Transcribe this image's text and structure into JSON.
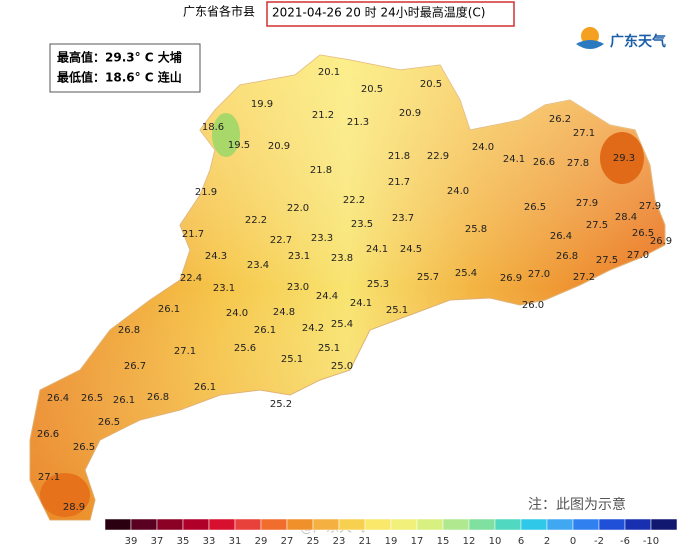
{
  "header": {
    "title": "广东省各市县",
    "date_title": "2021-04-26 20 时 24小时最高温度(C)"
  },
  "extremes": [
    "最高值：29.3° C 大埔",
    "最低值：18.6° C 连山"
  ],
  "logo": "广东天气",
  "stations": [
    "20.1",
    "20.5",
    "20.5",
    "19.9",
    "21.2",
    "21.3",
    "20.9",
    "18.6",
    "19.5",
    "20.9",
    "21.8",
    "22.9",
    "24.0",
    "24.1",
    "26.2",
    "27.1",
    "26.6",
    "27.8",
    "29.3",
    "21.8",
    "21.7",
    "21.9",
    "24.0",
    "22.2",
    "22.0",
    "27.9",
    "27.9",
    "26.5",
    "28.4",
    "22.2",
    "23.5",
    "23.7",
    "25.8",
    "27.5",
    "21.7",
    "22.7",
    "23.3",
    "26.4",
    "26.5",
    "26.9",
    "24.3",
    "23.1",
    "24.1",
    "24.5",
    "23.8",
    "26.8",
    "27.5",
    "27.0",
    "23.4",
    "22.4",
    "25.3",
    "25.7",
    "25.4",
    "26.9",
    "27.0",
    "27.2",
    "23.1",
    "23.0",
    "24.4",
    "26.1",
    "24.1",
    "25.1",
    "26.0",
    "24.0",
    "24.8",
    "26.8",
    "26.1",
    "24.2",
    "25.4",
    "25.6",
    "25.1",
    "27.1",
    "26.7",
    "25.1",
    "25.0",
    "26.1",
    "26.4",
    "26.5",
    "26.1",
    "26.8",
    "25.2",
    "26.5",
    "26.6",
    "26.5",
    "27.1",
    "28.9"
  ],
  "legend": {
    "colors": [
      "#2a0010",
      "#5a0020",
      "#8b0025",
      "#b0002a",
      "#d7102f",
      "#e8403a",
      "#f06d2c",
      "#f0902a",
      "#f4b040",
      "#f7d050",
      "#f9e86a",
      "#f0f07a",
      "#d8f080",
      "#b0e890",
      "#80e0a0",
      "#50d8c0",
      "#30c8e8",
      "#40a8f0",
      "#3080f0",
      "#2050d8",
      "#1830b0",
      "#101870"
    ],
    "labels": [
      39,
      37,
      35,
      33,
      31,
      29,
      27,
      25,
      23,
      21,
      19,
      17,
      15,
      12,
      10,
      6,
      2,
      0,
      -2,
      -6,
      -10
    ]
  },
  "note": "注：此图为示意",
  "watermark": "@广东天气"
}
